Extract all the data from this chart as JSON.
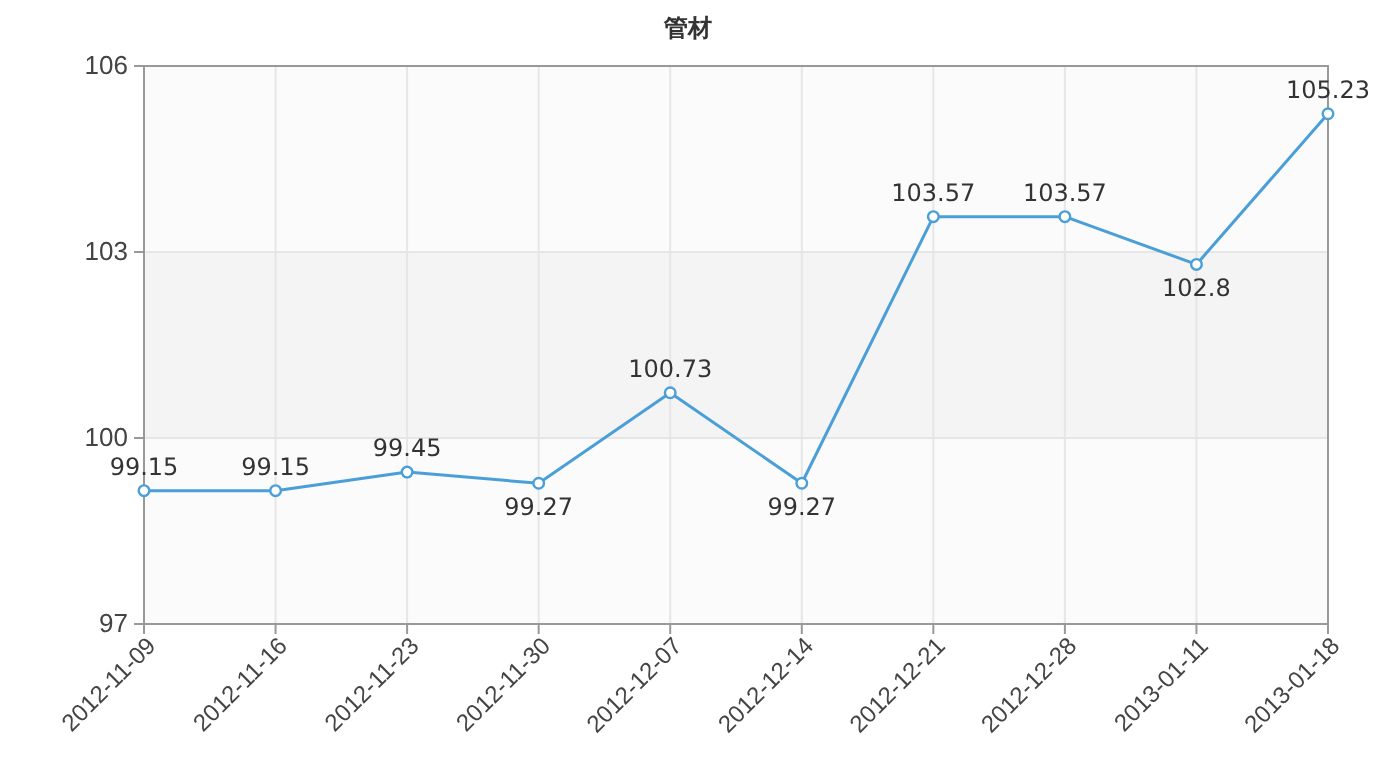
{
  "chart_data": {
    "type": "line",
    "title": "管材",
    "categories": [
      "2012-11-09",
      "2012-11-16",
      "2012-11-23",
      "2012-11-30",
      "2012-12-07",
      "2012-12-14",
      "2012-12-21",
      "2012-12-28",
      "2013-01-11",
      "2013-01-18"
    ],
    "series": [
      {
        "color": "#4a9fd8",
        "values": [
          99.15,
          99.15,
          99.45,
          99.27,
          100.73,
          99.27,
          103.57,
          103.57,
          102.8,
          105.23
        ]
      }
    ],
    "ylim": [
      97,
      106
    ],
    "yticks": [
      97,
      100,
      103,
      106
    ],
    "grid": true,
    "marker": "circle",
    "line_style": "solid",
    "data_labels": true,
    "bands": [
      {
        "axis": "y",
        "from": 100,
        "to": 103,
        "color": "#f4f4f4"
      }
    ]
  }
}
